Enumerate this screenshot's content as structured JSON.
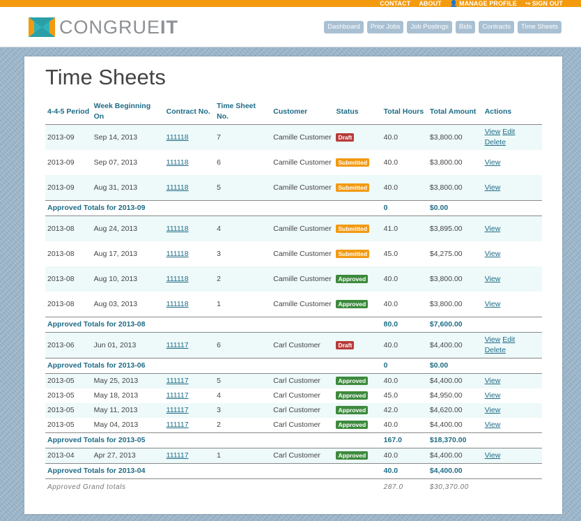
{
  "toplinks": [
    {
      "label": "CONTACT",
      "icon": ""
    },
    {
      "label": "ABOUT",
      "icon": ""
    },
    {
      "label": "MANAGE PROFILE",
      "icon": "user-icon"
    },
    {
      "label": "SIGN OUT",
      "icon": "exit-icon"
    }
  ],
  "brand": {
    "name_light": "CONGRUE",
    "name_bold": "IT",
    "colors": {
      "orange": "#f39a0f",
      "teal": "#2fb3b8"
    }
  },
  "nav": [
    "Dashboard",
    "Prior Jobs",
    "Job Postings",
    "Bids",
    "Contracts",
    "Time Sheets"
  ],
  "page_title": "Time Sheets",
  "columns": [
    "4-4-5 Period",
    "Week Beginning On",
    "Contract No.",
    "Time Sheet No.",
    "Customer",
    "Status",
    "Total Hours",
    "Total Amount",
    "Actions"
  ],
  "status_colors": {
    "Draft": "#b73b3a",
    "Submitted": "#f29a12",
    "Approved": "#3d8a3d"
  },
  "rows": [
    {
      "type": "row",
      "period": "2013-09",
      "week": "Sep 14, 2013",
      "contract": "111118",
      "sheet": "7",
      "customer": "Camille Customer",
      "status": "Draft",
      "hours": "40.0",
      "amount": "$3,800.00",
      "actions": [
        "View",
        "Edit",
        "Delete"
      ]
    },
    {
      "type": "row",
      "period": "2013-09",
      "week": "Sep 07, 2013",
      "contract": "111118",
      "sheet": "6",
      "customer": "Camille Customer",
      "status": "Submitted",
      "hours": "40.0",
      "amount": "$3,800.00",
      "actions": [
        "View"
      ]
    },
    {
      "type": "row",
      "period": "2013-09",
      "week": "Aug 31, 2013",
      "contract": "111118",
      "sheet": "5",
      "customer": "Camille Customer",
      "status": "Submitted",
      "hours": "40.0",
      "amount": "$3,800.00",
      "actions": [
        "View"
      ]
    },
    {
      "type": "total",
      "label": "Approved Totals for 2013-09",
      "hours": "0",
      "amount": "$0.00"
    },
    {
      "type": "row",
      "period": "2013-08",
      "week": "Aug 24, 2013",
      "contract": "111118",
      "sheet": "4",
      "customer": "Camille Customer",
      "status": "Submitted",
      "hours": "41.0",
      "amount": "$3,895.00",
      "actions": [
        "View"
      ]
    },
    {
      "type": "row",
      "period": "2013-08",
      "week": "Aug 17, 2013",
      "contract": "111118",
      "sheet": "3",
      "customer": "Camille Customer",
      "status": "Submitted",
      "hours": "45.0",
      "amount": "$4,275.00",
      "actions": [
        "View"
      ]
    },
    {
      "type": "row",
      "period": "2013-08",
      "week": "Aug 10, 2013",
      "contract": "111118",
      "sheet": "2",
      "customer": "Camille Customer",
      "status": "Approved",
      "hours": "40.0",
      "amount": "$3,800.00",
      "actions": [
        "View"
      ]
    },
    {
      "type": "row",
      "period": "2013-08",
      "week": "Aug 03, 2013",
      "contract": "111118",
      "sheet": "1",
      "customer": "Camille Customer",
      "status": "Approved",
      "hours": "40.0",
      "amount": "$3,800.00",
      "actions": [
        "View"
      ]
    },
    {
      "type": "total",
      "label": "Approved Totals for 2013-08",
      "hours": "80.0",
      "amount": "$7,600.00"
    },
    {
      "type": "row",
      "period": "2013-06",
      "week": "Jun 01, 2013",
      "contract": "111117",
      "sheet": "6",
      "customer": "Carl Customer",
      "status": "Draft",
      "hours": "40.0",
      "amount": "$4,400.00",
      "actions": [
        "View",
        "Edit",
        "Delete"
      ]
    },
    {
      "type": "total",
      "label": "Approved Totals for 2013-06",
      "hours": "0",
      "amount": "$0.00"
    },
    {
      "type": "row",
      "period": "2013-05",
      "week": "May 25, 2013",
      "contract": "111117",
      "sheet": "5",
      "customer": "Carl Customer",
      "status": "Approved",
      "hours": "40.0",
      "amount": "$4,400.00",
      "actions": [
        "View"
      ]
    },
    {
      "type": "row",
      "period": "2013-05",
      "week": "May 18, 2013",
      "contract": "111117",
      "sheet": "4",
      "customer": "Carl Customer",
      "status": "Approved",
      "hours": "45.0",
      "amount": "$4,950.00",
      "actions": [
        "View"
      ]
    },
    {
      "type": "row",
      "period": "2013-05",
      "week": "May 11, 2013",
      "contract": "111117",
      "sheet": "3",
      "customer": "Carl Customer",
      "status": "Approved",
      "hours": "42.0",
      "amount": "$4,620.00",
      "actions": [
        "View"
      ]
    },
    {
      "type": "row",
      "period": "2013-05",
      "week": "May 04, 2013",
      "contract": "111117",
      "sheet": "2",
      "customer": "Carl Customer",
      "status": "Approved",
      "hours": "40.0",
      "amount": "$4,400.00",
      "actions": [
        "View"
      ]
    },
    {
      "type": "total",
      "label": "Approved Totals for 2013-05",
      "hours": "167.0",
      "amount": "$18,370.00"
    },
    {
      "type": "row",
      "period": "2013-04",
      "week": "Apr 27, 2013",
      "contract": "111117",
      "sheet": "1",
      "customer": "Carl Customer",
      "status": "Approved",
      "hours": "40.0",
      "amount": "$4,400.00",
      "actions": [
        "View"
      ]
    },
    {
      "type": "total",
      "label": "Approved Totals for 2013-04",
      "hours": "40.0",
      "amount": "$4,400.00"
    }
  ],
  "grand": {
    "label": "Approved Grand totals",
    "hours": "287.0",
    "amount": "$30,370.00"
  }
}
